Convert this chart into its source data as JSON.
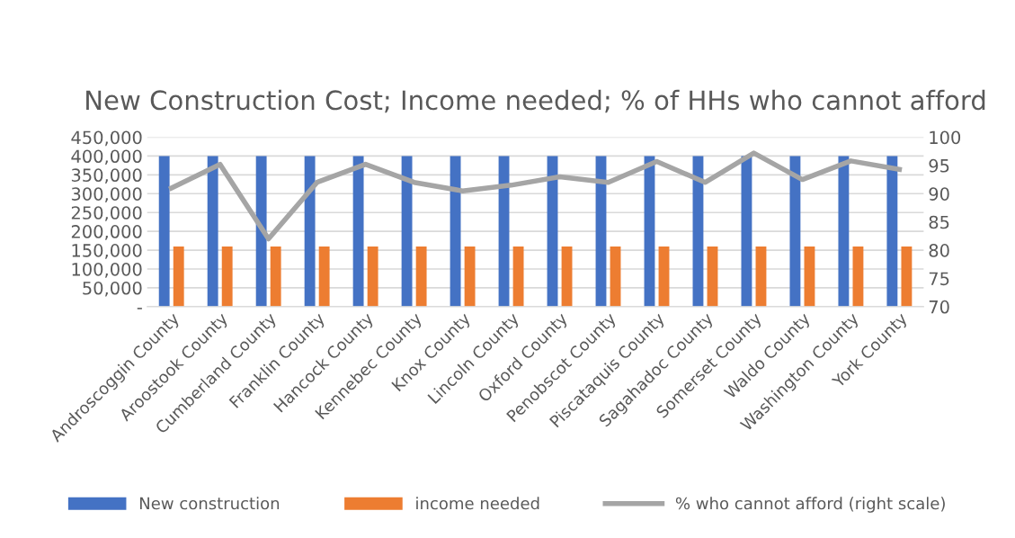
{
  "chart_data": {
    "type": "bar",
    "title": "New Construction Cost; Income needed; % of HHs who cannot afford",
    "categories": [
      "Androscoggin County",
      "Aroostook County",
      "Cumberland County",
      "Franklin County",
      "Hancock County",
      "Kennebec County",
      "Knox County",
      "Lincoln County",
      "Oxford County",
      "Penobscot County",
      "Piscataquis County",
      "Sagahadoc County",
      "Somerset County",
      "Waldo County",
      "Washington County",
      "York County"
    ],
    "series": [
      {
        "name": "New construction",
        "color": "#4472c4",
        "values": [
          400000,
          400000,
          400000,
          400000,
          400000,
          400000,
          400000,
          400000,
          400000,
          400000,
          400000,
          400000,
          400000,
          400000,
          400000,
          400000
        ]
      },
      {
        "name": "income needed",
        "color": "#ed7d31",
        "values": [
          160000,
          160000,
          160000,
          160000,
          160000,
          160000,
          160000,
          160000,
          160000,
          160000,
          160000,
          160000,
          160000,
          160000,
          160000,
          160000
        ]
      },
      {
        "name": "% who cannot afford (right scale)",
        "type": "line",
        "axis": "y2",
        "color": "#a5a5a5",
        "values": [
          91,
          95.2,
          82,
          92,
          95.2,
          92,
          90.5,
          91.5,
          93,
          92,
          95.7,
          92,
          97.2,
          92.5,
          95.8,
          94.3
        ]
      }
    ],
    "ylim": [
      0,
      450000
    ],
    "yticks": [
      {
        "value": 0,
        "label": "-"
      },
      {
        "value": 50000,
        "label": "50,000"
      },
      {
        "value": 100000,
        "label": "100,000"
      },
      {
        "value": 150000,
        "label": "150,000"
      },
      {
        "value": 200000,
        "label": "200,000"
      },
      {
        "value": 250000,
        "label": "250,000"
      },
      {
        "value": 300000,
        "label": "300,000"
      },
      {
        "value": 350000,
        "label": "350,000"
      },
      {
        "value": 400000,
        "label": "400,000"
      },
      {
        "value": 450000,
        "label": "450,000"
      }
    ],
    "y2lim": [
      70,
      100
    ],
    "y2ticks": [
      70,
      75,
      80,
      85,
      90,
      95,
      100
    ],
    "grid": "y",
    "legend": "bottom"
  }
}
